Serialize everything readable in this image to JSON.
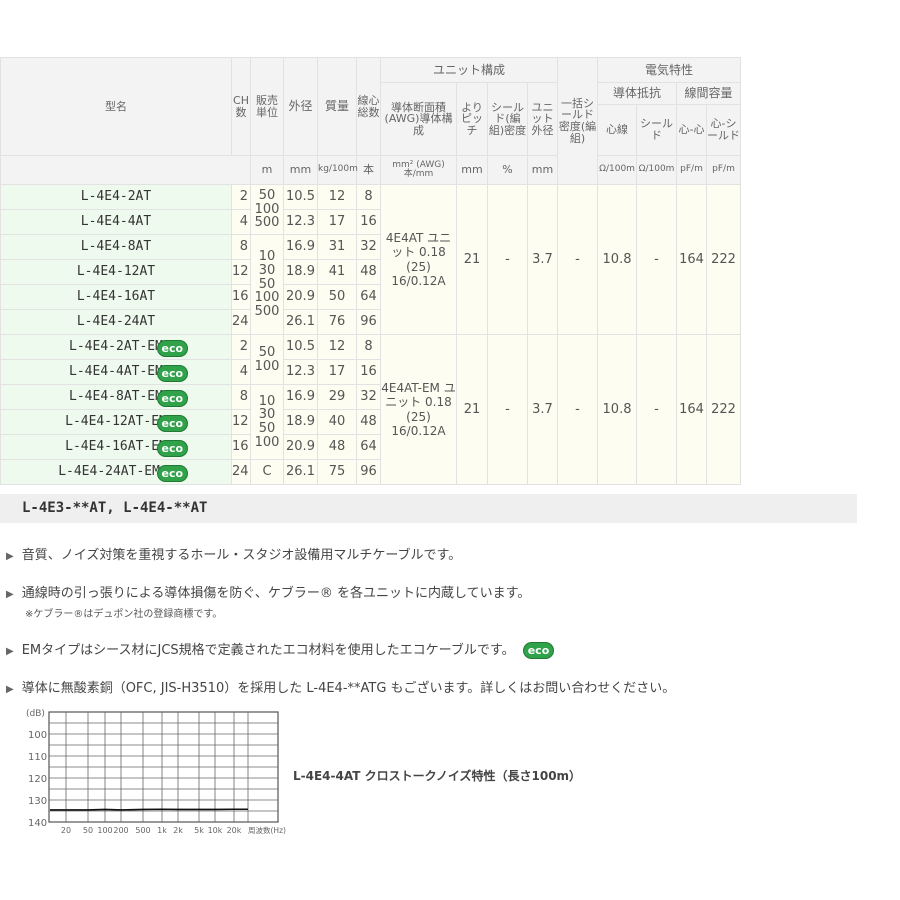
{
  "table": {
    "headers": {
      "model": "型名",
      "ch": "CH数",
      "unit": "販売単位",
      "od": "外径",
      "mass": "質量",
      "cores": "線心総数",
      "unit_group": "ユニット構成",
      "conductor": "導体断面積(AWG)導体構成",
      "pitch": "よりピッチ",
      "shield": "シールド(編組)密度",
      "unit_od": "ユニット外径",
      "overall_shield": "一括シールド密度(編組)",
      "elec": "電気特性",
      "resist": "導体抵抗",
      "cap": "線間容量",
      "core": "心線",
      "shield_r": "シールド",
      "cc": "心-心",
      "cs": "心-シールド"
    },
    "units": {
      "unit": "m",
      "od": "mm",
      "mass": "kg/100m",
      "cores": "本",
      "conductor": "mm² (AWG) 本/mm",
      "pitch": "mm",
      "shield": "%",
      "unit_od": "mm",
      "core": "Ω/100m",
      "shield_r": "Ω/100m",
      "cc": "pF/m",
      "cs": "pF/m"
    },
    "groups": [
      {
        "rows": [
          {
            "name": "L-4E4-2AT",
            "ch": "2",
            "od": "10.5",
            "mass": "12",
            "cores": "8"
          },
          {
            "name": "L-4E4-4AT",
            "ch": "4",
            "od": "12.3",
            "mass": "17",
            "cores": "16"
          },
          {
            "name": "L-4E4-8AT",
            "ch": "8",
            "od": "16.9",
            "mass": "31",
            "cores": "32"
          },
          {
            "name": "L-4E4-12AT",
            "ch": "12",
            "od": "18.9",
            "mass": "41",
            "cores": "48"
          },
          {
            "name": "L-4E4-16AT",
            "ch": "16",
            "od": "20.9",
            "mass": "50",
            "cores": "64"
          },
          {
            "name": "L-4E4-24AT",
            "ch": "24",
            "od": "26.1",
            "mass": "76",
            "cores": "96"
          }
        ],
        "units": [
          "50 100 500",
          "10 30 50 100 500"
        ],
        "conductor": "4E4AT ユニット 0.18 (25) 16/0.12A",
        "pitch": "21",
        "shield": "-",
        "unit_od": "3.7",
        "overall": "-",
        "core": "10.8",
        "shield_r": "-",
        "cc": "164",
        "cs": "222"
      },
      {
        "rows": [
          {
            "name": "L-4E4-2AT-EM",
            "ch": "2",
            "od": "10.5",
            "mass": "12",
            "cores": "8",
            "eco": "eco"
          },
          {
            "name": "L-4E4-4AT-EM",
            "ch": "4",
            "od": "12.3",
            "mass": "17",
            "cores": "16",
            "eco": "eco"
          },
          {
            "name": "L-4E4-8AT-EM",
            "ch": "8",
            "od": "16.9",
            "mass": "29",
            "cores": "32",
            "eco": "eco"
          },
          {
            "name": "L-4E4-12AT-EM",
            "ch": "12",
            "od": "18.9",
            "mass": "40",
            "cores": "48",
            "eco": "eco"
          },
          {
            "name": "L-4E4-16AT-EM",
            "ch": "16",
            "od": "20.9",
            "mass": "48",
            "cores": "64",
            "eco": "eco"
          },
          {
            "name": "L-4E4-24AT-EM",
            "star": "★",
            "ch": "24",
            "od": "26.1",
            "mass": "75",
            "cores": "96",
            "eco": "eco"
          }
        ],
        "units": [
          "50 100",
          "10 30 50 100",
          "C"
        ],
        "conductor": "4E4AT-EM ユニット 0.18 (25) 16/0.12A",
        "pitch": "21",
        "shield": "-",
        "unit_od": "3.7",
        "overall": "-",
        "core": "10.8",
        "shield_r": "-",
        "cc": "164",
        "cs": "222"
      }
    ]
  },
  "series_title": "L-4E3-**AT, L-4E4-**AT",
  "bullets": [
    "音質、ノイズ対策を重視するホール・スタジオ設備用マルチケーブルです。",
    "通線時の引っ張りによる導体損傷を防ぐ、ケブラー® を各ユニットに内蔵しています。",
    "EMタイプはシース材にJCS規格で定義されたエコ材料を使用したエコケーブルです。",
    "導体に無酸素銅（OFC, JIS-H3510）を採用した L-4E4-**ATG もございます。詳しくはお問い合わせください。"
  ],
  "note": "※ケブラー®はデュポン社の登録商標です。",
  "eco_label": "eco",
  "chart_caption": "L-4E4-4AT クロストークノイズ特性（長さ100m）",
  "chart_data": {
    "type": "line",
    "ylabel": "(dB)",
    "xlabel": "周波数(Hz)",
    "y_ticks": [
      "100",
      "110",
      "120",
      "130",
      "140"
    ],
    "ylim": [
      140,
      90
    ],
    "x_ticks": [
      "20",
      "50",
      "100",
      "200",
      "500",
      "1k",
      "2k",
      "5k",
      "10k",
      "20k"
    ],
    "grid": true,
    "series": [
      {
        "x": [
          20,
          50,
          100,
          200,
          500,
          1000,
          2000,
          5000,
          10000,
          20000
        ],
        "y": [
          134.5,
          134.5,
          134.3,
          134.5,
          134.3,
          134.2,
          134.3,
          134.3,
          134.3,
          134.2
        ]
      }
    ]
  }
}
